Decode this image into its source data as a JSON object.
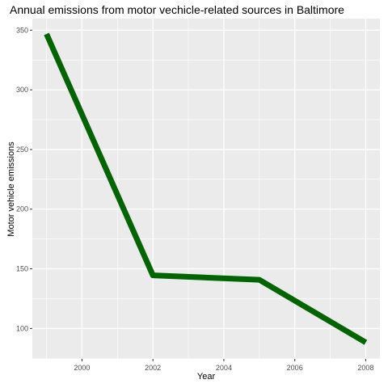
{
  "chart_data": {
    "type": "line",
    "title": "Annual emissions from motor vechicle-related sources in Baltimore",
    "xlabel": "Year",
    "ylabel": "Motor vehicle emissions",
    "x": [
      1999,
      2002,
      2005,
      2008
    ],
    "series": [
      {
        "values": [
          346.8,
          144.5,
          140.8,
          88.3
        ],
        "color": "#006400"
      }
    ],
    "xlim": [
      1998.6,
      2008.4
    ],
    "ylim": [
      74.5,
      359.7
    ],
    "x_ticks": [
      2000,
      2002,
      2004,
      2006,
      2008
    ],
    "x_tick_labels": [
      "2000",
      "2002",
      "2004",
      "2006",
      "2008"
    ],
    "y_ticks": [
      100,
      150,
      200,
      250,
      300,
      350
    ],
    "y_tick_labels": [
      "100",
      "150",
      "200",
      "250",
      "300",
      "350"
    ],
    "grid": true,
    "panel_background": "#ebebeb",
    "grid_color": "#ffffff",
    "legend": "none"
  }
}
